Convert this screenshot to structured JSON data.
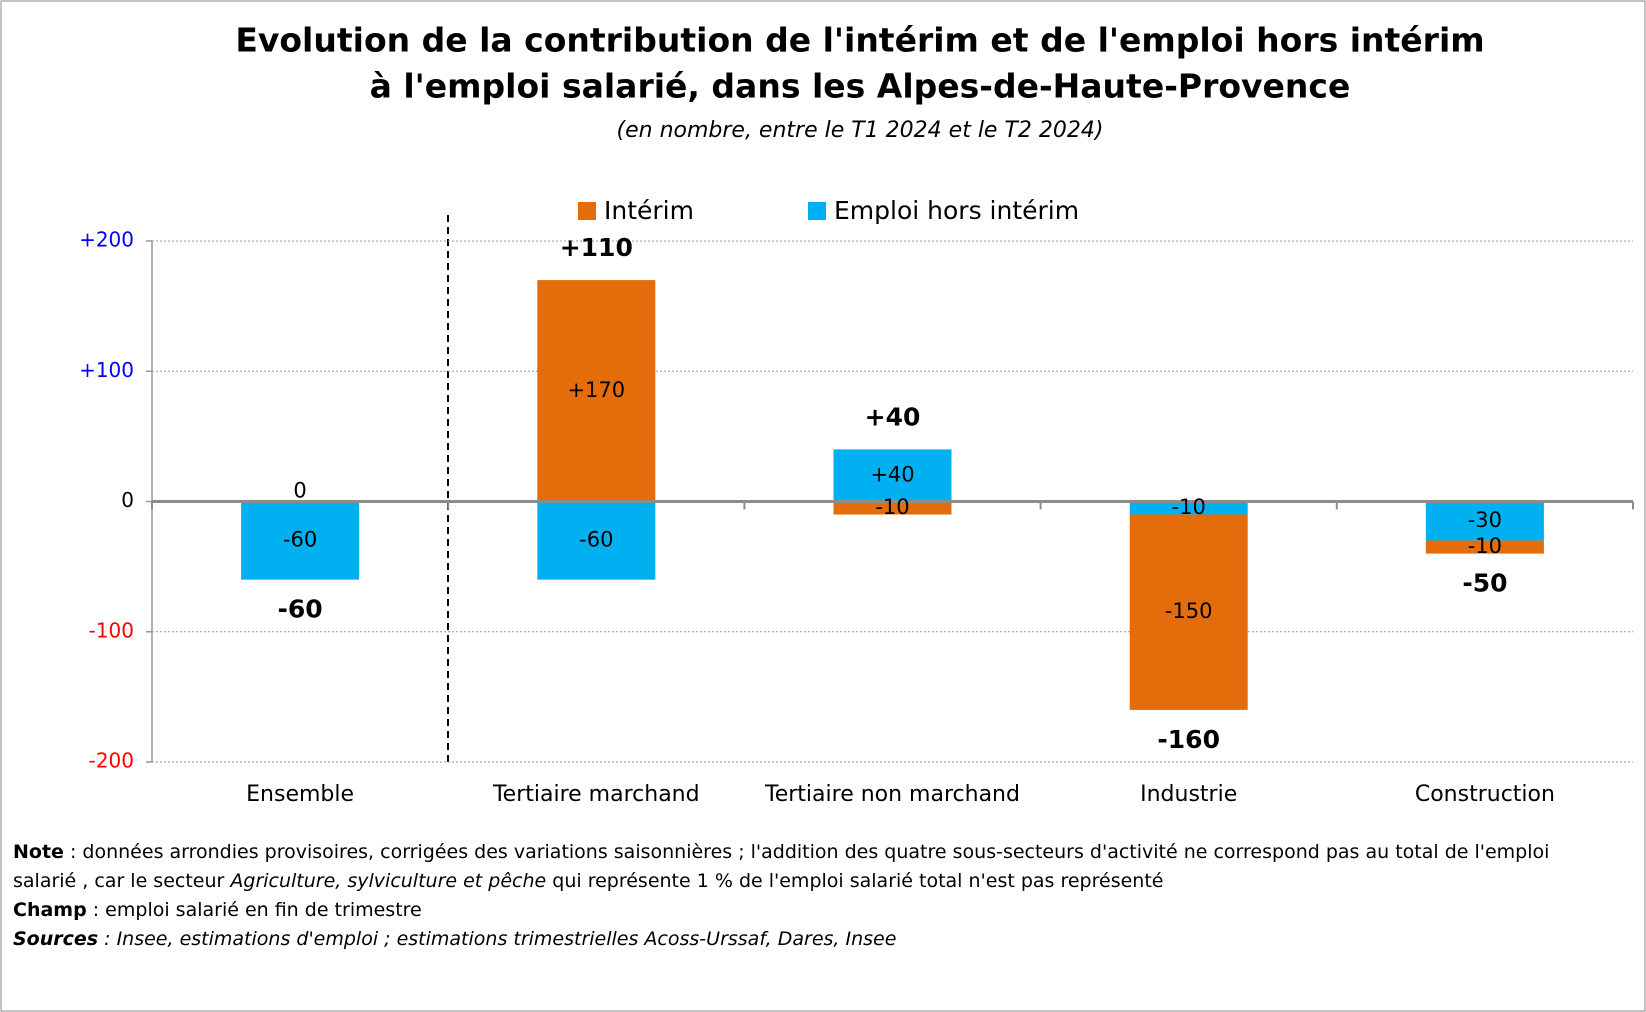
{
  "chart_data": {
    "type": "stacked_bar",
    "title": [
      "Evolution de la contribution de l'intérim et de l'emploi hors intérim",
      "à l'emploi salarié, dans les Alpes-de-Haute-Provence"
    ],
    "subtitle": "(en nombre, entre le T1 2024 et le T2 2024)",
    "categories": [
      "Ensemble",
      "Tertiaire marchand",
      "Tertiaire non marchand",
      "Industrie",
      "Construction"
    ],
    "series": [
      {
        "name": "Intérim",
        "color": "#e46c0a",
        "values": [
          0,
          170,
          -10,
          -150,
          -10
        ],
        "value_labels": [
          "0",
          "+170",
          "-10",
          "-150",
          "-10"
        ]
      },
      {
        "name": "Emploi hors intérim",
        "color": "#00b0f0",
        "values": [
          -60,
          -60,
          40,
          -10,
          -30
        ],
        "value_labels": [
          "-60",
          "-60",
          "+40",
          "-10",
          "-30"
        ]
      }
    ],
    "totals": {
      "values": [
        -60,
        110,
        40,
        -160,
        -50
      ],
      "value_labels": [
        "-60",
        "+110",
        "+40",
        "-160",
        "-50"
      ]
    },
    "ylim": [
      -200,
      200
    ],
    "yticks": [
      {
        "value": 200,
        "label": "+200"
      },
      {
        "value": 100,
        "label": "+100"
      },
      0,
      -100,
      -200
    ],
    "positive_tick_color": "#0000ff",
    "negative_tick_color": "#ff0000",
    "grid": true,
    "legend": "top"
  },
  "notes": {
    "note": [
      "Note",
      " : données arrondies provisoires, corrigées des variations saisonnières ; l'addition des quatre sous-secteurs d'activité ne correspond pas au total de l'emploi salarié , car le secteur ",
      "Agriculture, sylviculture et pêche",
      " qui représente 1 % de l'emploi salarié total n'est pas représenté"
    ],
    "champ": [
      "Champ",
      " : emploi salarié en fin de trimestre"
    ],
    "sources": [
      "Sources",
      " : Insee, estimations d'emploi ; estimations trimestrielles Acoss-Urssaf, Dares, Insee"
    ]
  }
}
